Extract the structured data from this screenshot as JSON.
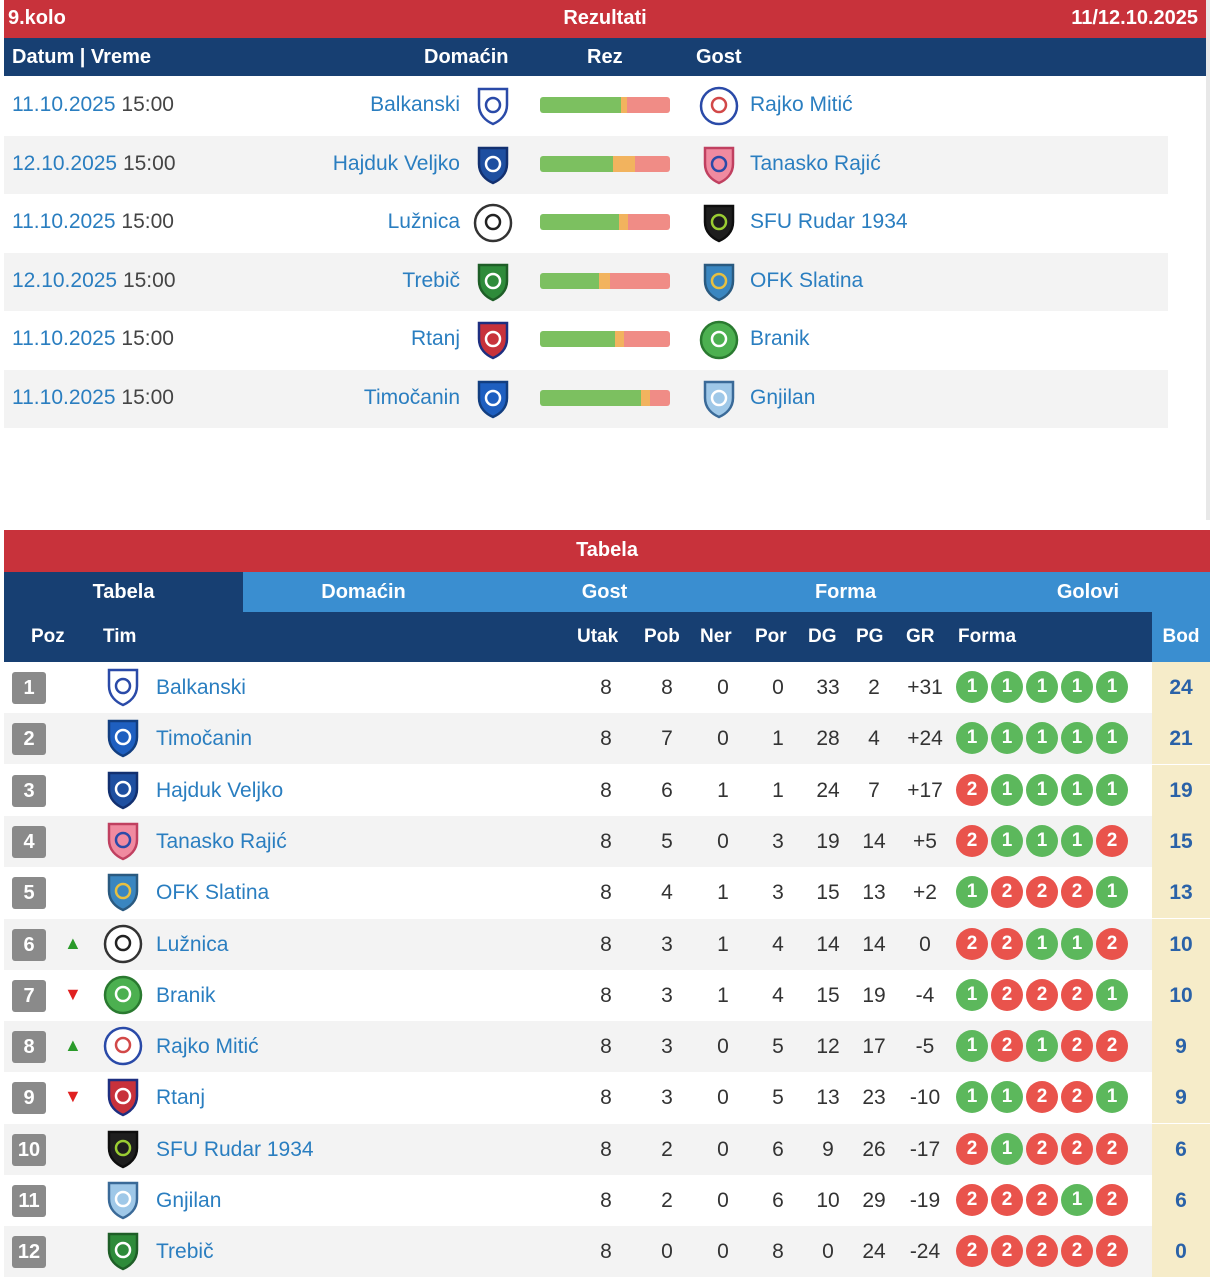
{
  "results": {
    "round": "9.kolo",
    "title": "Rezultati",
    "dates": "11/12.10.2025",
    "headers": {
      "datum": "Datum | Vreme",
      "home": "Domaćin",
      "rez": "Rez",
      "away": "Gost"
    },
    "matches": [
      {
        "date": "11.10.2025",
        "time": "15:00",
        "home": "Balkanski",
        "away": "Rajko Mitić",
        "bar": [
          0.62,
          0.05,
          0.33
        ]
      },
      {
        "date": "12.10.2025",
        "time": "15:00",
        "home": "Hajduk Veljko",
        "away": "Tanasko Rajić",
        "bar": [
          0.56,
          0.17,
          0.27
        ]
      },
      {
        "date": "11.10.2025",
        "time": "15:00",
        "home": "Lužnica",
        "away": "SFU Rudar 1934",
        "bar": [
          0.61,
          0.07,
          0.32
        ]
      },
      {
        "date": "12.10.2025",
        "time": "15:00",
        "home": "Trebič",
        "away": "OFK Slatina",
        "bar": [
          0.45,
          0.09,
          0.46
        ]
      },
      {
        "date": "11.10.2025",
        "time": "15:00",
        "home": "Rtanj",
        "away": "Branik",
        "bar": [
          0.58,
          0.07,
          0.35
        ]
      },
      {
        "date": "11.10.2025",
        "time": "15:00",
        "home": "Timočanin",
        "away": "Gnjilan",
        "bar": [
          0.78,
          0.07,
          0.15
        ]
      }
    ]
  },
  "table": {
    "title": "Tabela",
    "tabs": [
      "Tabela",
      "Domaćin",
      "Gost",
      "Forma",
      "Golovi"
    ],
    "headers": {
      "poz": "Poz",
      "tim": "Tim",
      "utak": "Utak",
      "pob": "Pob",
      "ner": "Ner",
      "por": "Por",
      "dg": "DG",
      "pg": "PG",
      "gr": "GR",
      "forma": "Forma",
      "bod": "Bod"
    },
    "rows": [
      {
        "pos": "1",
        "trend": "",
        "team": "Balkanski",
        "utak": "8",
        "pob": "8",
        "ner": "0",
        "por": "0",
        "dg": "33",
        "pg": "2",
        "gr": "+31",
        "forma": [
          "1",
          "1",
          "1",
          "1",
          "1"
        ],
        "bod": "24"
      },
      {
        "pos": "2",
        "trend": "",
        "team": "Timočanin",
        "utak": "8",
        "pob": "7",
        "ner": "0",
        "por": "1",
        "dg": "28",
        "pg": "4",
        "gr": "+24",
        "forma": [
          "1",
          "1",
          "1",
          "1",
          "1"
        ],
        "bod": "21"
      },
      {
        "pos": "3",
        "trend": "",
        "team": "Hajduk Veljko",
        "utak": "8",
        "pob": "6",
        "ner": "1",
        "por": "1",
        "dg": "24",
        "pg": "7",
        "gr": "+17",
        "forma": [
          "2",
          "1",
          "1",
          "1",
          "1"
        ],
        "bod": "19"
      },
      {
        "pos": "4",
        "trend": "",
        "team": "Tanasko Rajić",
        "utak": "8",
        "pob": "5",
        "ner": "0",
        "por": "3",
        "dg": "19",
        "pg": "14",
        "gr": "+5",
        "forma": [
          "2",
          "1",
          "1",
          "1",
          "2"
        ],
        "bod": "15"
      },
      {
        "pos": "5",
        "trend": "",
        "team": "OFK Slatina",
        "utak": "8",
        "pob": "4",
        "ner": "1",
        "por": "3",
        "dg": "15",
        "pg": "13",
        "gr": "+2",
        "forma": [
          "1",
          "2",
          "2",
          "2",
          "1"
        ],
        "bod": "13"
      },
      {
        "pos": "6",
        "trend": "up",
        "team": "Lužnica",
        "utak": "8",
        "pob": "3",
        "ner": "1",
        "por": "4",
        "dg": "14",
        "pg": "14",
        "gr": "0",
        "forma": [
          "2",
          "2",
          "1",
          "1",
          "2"
        ],
        "bod": "10"
      },
      {
        "pos": "7",
        "trend": "down",
        "team": "Branik",
        "utak": "8",
        "pob": "3",
        "ner": "1",
        "por": "4",
        "dg": "15",
        "pg": "19",
        "gr": "-4",
        "forma": [
          "1",
          "2",
          "2",
          "2",
          "1"
        ],
        "bod": "10"
      },
      {
        "pos": "8",
        "trend": "up",
        "team": "Rajko Mitić",
        "utak": "8",
        "pob": "3",
        "ner": "0",
        "por": "5",
        "dg": "12",
        "pg": "17",
        "gr": "-5",
        "forma": [
          "1",
          "2",
          "1",
          "2",
          "2"
        ],
        "bod": "9"
      },
      {
        "pos": "9",
        "trend": "down",
        "team": "Rtanj",
        "utak": "8",
        "pob": "3",
        "ner": "0",
        "por": "5",
        "dg": "13",
        "pg": "23",
        "gr": "-10",
        "forma": [
          "1",
          "1",
          "2",
          "2",
          "1"
        ],
        "bod": "9"
      },
      {
        "pos": "10",
        "trend": "",
        "team": "SFU Rudar 1934",
        "utak": "8",
        "pob": "2",
        "ner": "0",
        "por": "6",
        "dg": "9",
        "pg": "26",
        "gr": "-17",
        "forma": [
          "2",
          "1",
          "2",
          "2",
          "2"
        ],
        "bod": "6"
      },
      {
        "pos": "11",
        "trend": "",
        "team": "Gnjilan",
        "utak": "8",
        "pob": "2",
        "ner": "0",
        "por": "6",
        "dg": "10",
        "pg": "29",
        "gr": "-19",
        "forma": [
          "2",
          "2",
          "2",
          "1",
          "2"
        ],
        "bod": "6"
      },
      {
        "pos": "12",
        "trend": "",
        "team": "Trebič",
        "utak": "8",
        "pob": "0",
        "ner": "0",
        "por": "8",
        "dg": "0",
        "pg": "24",
        "gr": "-24",
        "forma": [
          "2",
          "2",
          "2",
          "2",
          "2"
        ],
        "bod": "0"
      }
    ]
  },
  "crests": {
    "Balkanski": {
      "icon": "balkanski-crest-icon",
      "fill": "#ffffff",
      "stroke": "#2a4aa8",
      "accent": "#2a4aa8",
      "shape": "shield"
    },
    "Rajko Mitić": {
      "icon": "rajko-mitic-crest-icon",
      "fill": "#ffffff",
      "stroke": "#2a4aa8",
      "accent": "#d24848",
      "shape": "circle"
    },
    "Hajduk Veljko": {
      "icon": "hajduk-veljko-crest-icon",
      "fill": "#1e4fa0",
      "stroke": "#123070",
      "accent": "#ffffff",
      "shape": "shield"
    },
    "Tanasko Rajić": {
      "icon": "tanasko-rajic-crest-icon",
      "fill": "#f08aa0",
      "stroke": "#c04060",
      "accent": "#2a4aa8",
      "shape": "shield"
    },
    "Lužnica": {
      "icon": "luznica-crest-icon",
      "fill": "#ffffff",
      "stroke": "#333333",
      "accent": "#222222",
      "shape": "circle"
    },
    "SFU Rudar 1934": {
      "icon": "sfu-rudar-crest-icon",
      "fill": "#1e1e1e",
      "stroke": "#0e0e0e",
      "accent": "#9acd32",
      "shape": "shield"
    },
    "Trebič": {
      "icon": "trebic-crest-icon",
      "fill": "#2e8b3a",
      "stroke": "#1e5e27",
      "accent": "#ffffff",
      "shape": "shield"
    },
    "OFK Slatina": {
      "icon": "ofk-slatina-crest-icon",
      "fill": "#3a86c0",
      "stroke": "#2a5a80",
      "accent": "#e8c040",
      "shape": "shield"
    },
    "Rtanj": {
      "icon": "rtanj-crest-icon",
      "fill": "#c8323b",
      "stroke": "#1e2f80",
      "accent": "#ffffff",
      "shape": "shield"
    },
    "Branik": {
      "icon": "branik-crest-icon",
      "fill": "#4cb050",
      "stroke": "#2a7a30",
      "accent": "#ffffff",
      "shape": "circle"
    },
    "Timočanin": {
      "icon": "timocanin-crest-icon",
      "fill": "#1e5fc0",
      "stroke": "#123e80",
      "accent": "#ffffff",
      "shape": "shield"
    },
    "Gnjilan": {
      "icon": "gnjilan-crest-icon",
      "fill": "#9fc8e8",
      "stroke": "#3a6a98",
      "accent": "#ffffff",
      "shape": "shield"
    }
  }
}
